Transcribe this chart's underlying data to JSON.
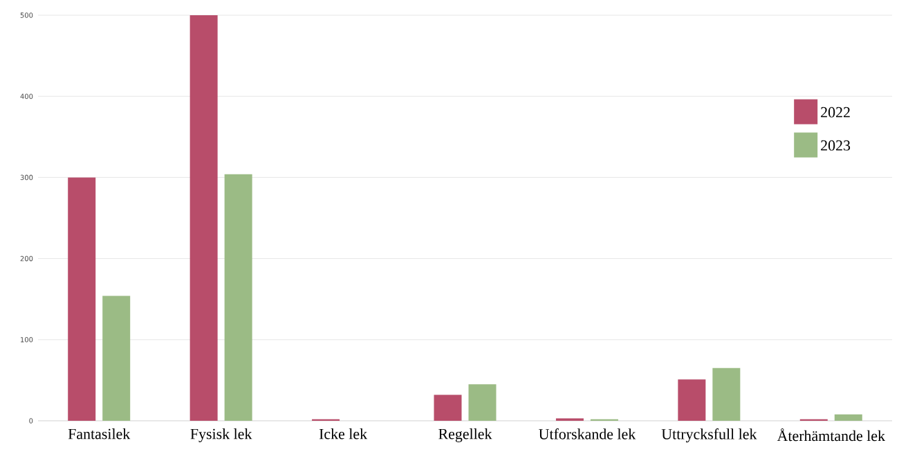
{
  "chart_data": {
    "type": "bar",
    "categories": [
      "Fantasilek",
      "Fysisk lek",
      "Icke lek",
      "Regellek",
      "Utforskande lek",
      "Uttrycksfull lek",
      "Återhämtande lek"
    ],
    "series": [
      {
        "name": "2022",
        "color": "#b84d6a",
        "values": [
          300,
          500,
          2,
          32,
          3,
          51,
          2
        ]
      },
      {
        "name": "2023",
        "color": "#9bbb85",
        "values": [
          154,
          304,
          0,
          45,
          2,
          65,
          8
        ]
      }
    ],
    "ylim": [
      0,
      500
    ],
    "yticks": [
      0,
      100,
      200,
      300,
      400,
      500
    ],
    "grid": "y",
    "legend": "right"
  }
}
